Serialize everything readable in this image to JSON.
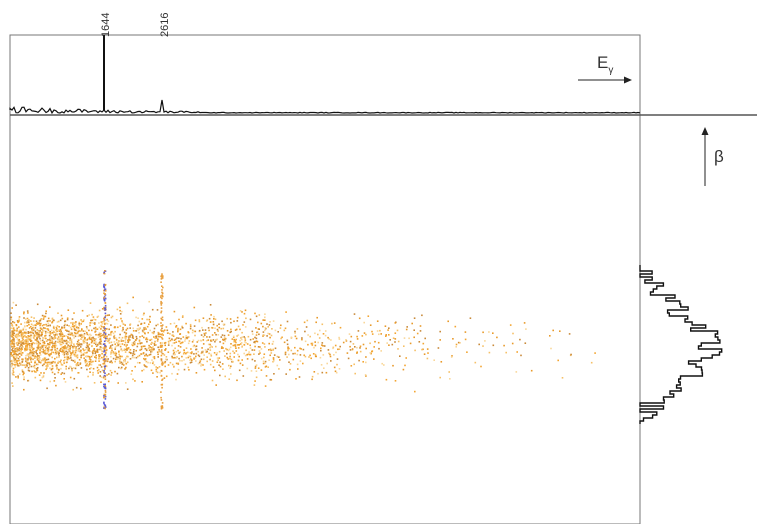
{
  "peaks": {
    "first": "1644",
    "second": "2616"
  },
  "axes": {
    "energy": {
      "symbol": "E",
      "subscript": "γ"
    },
    "beta": "β"
  }
}
